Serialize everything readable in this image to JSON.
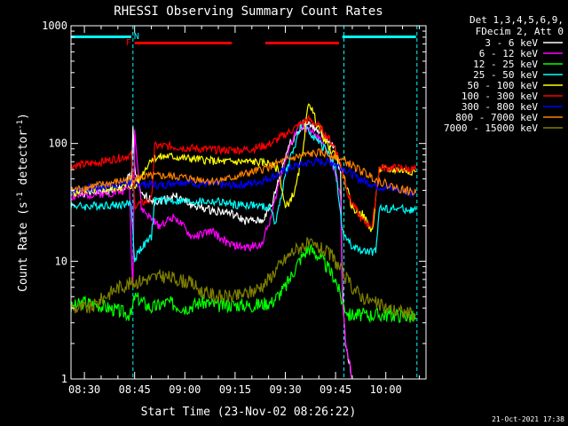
{
  "chart_data": {
    "type": "line",
    "title": "RHESSI Observing Summary Count Rates",
    "xlabel": "Start Time (23-Nov-02 08:26:22)",
    "ylabel_main": "Count Rate (s",
    "ylabel_sup1": "-1",
    "ylabel_mid": " detector",
    "ylabel_sup2": "-1",
    "ylabel_end": ")",
    "y_scale": "log",
    "ylim": [
      1,
      1000
    ],
    "xlim_minutes": [
      506,
      612
    ],
    "x_ticks": [
      {
        "label": "08:30",
        "t": 510
      },
      {
        "label": "08:45",
        "t": 525
      },
      {
        "label": "09:00",
        "t": 540
      },
      {
        "label": "09:15",
        "t": 555
      },
      {
        "label": "09:30",
        "t": 570
      },
      {
        "label": "09:45",
        "t": 585
      },
      {
        "label": "10:00",
        "t": 600
      }
    ],
    "y_ticks": [
      {
        "label": "1",
        "v": 1
      },
      {
        "label": "10",
        "v": 10
      },
      {
        "label": "100",
        "v": 100
      },
      {
        "label": "1000",
        "v": 1000
      }
    ],
    "legend_header": [
      "Det 1,3,4,5,6,9,",
      "FDecim 2, Att 0"
    ],
    "legend_position": "right",
    "flag_labels": {
      "flare": "F",
      "night": "N"
    },
    "night_flag_segments": [
      [
        506,
        524
      ],
      [
        587,
        609
      ]
    ],
    "flare_flag_segments": [
      [
        525,
        554
      ],
      [
        564,
        586
      ]
    ],
    "night_boundaries": [
      524.5,
      587.5,
      609.3
    ],
    "series": [
      {
        "name": "3 - 6 keV",
        "color": "#ffffff",
        "points": [
          [
            506,
            38
          ],
          [
            512,
            38
          ],
          [
            518,
            40
          ],
          [
            522,
            42
          ],
          [
            523.5,
            55
          ],
          [
            524,
            40
          ],
          [
            524.5,
            140
          ],
          [
            525,
            60
          ],
          [
            527,
            36
          ],
          [
            532,
            32
          ],
          [
            537,
            36
          ],
          [
            542,
            30
          ],
          [
            548,
            27
          ],
          [
            553,
            26
          ],
          [
            558,
            22
          ],
          [
            563,
            22
          ],
          [
            566,
            30
          ],
          [
            568,
            50
          ],
          [
            571,
            95
          ],
          [
            574,
            130
          ],
          [
            577,
            145
          ],
          [
            580,
            130
          ],
          [
            583,
            100
          ],
          [
            585,
            90
          ],
          [
            586.5,
            55
          ],
          [
            587,
            6
          ],
          [
            588,
            2
          ],
          [
            590,
            1
          ]
        ]
      },
      {
        "name": "6 - 12 keV",
        "color": "#ff00ff",
        "points": [
          [
            506,
            35
          ],
          [
            512,
            37
          ],
          [
            518,
            38
          ],
          [
            522,
            40
          ],
          [
            523.5,
            45
          ],
          [
            524,
            12
          ],
          [
            524.5,
            6
          ],
          [
            525,
            140
          ],
          [
            526,
            60
          ],
          [
            527,
            28
          ],
          [
            532,
            20
          ],
          [
            537,
            24
          ],
          [
            542,
            16
          ],
          [
            548,
            18
          ],
          [
            553,
            14
          ],
          [
            558,
            13
          ],
          [
            563,
            14
          ],
          [
            566,
            25
          ],
          [
            568,
            45
          ],
          [
            571,
            90
          ],
          [
            574,
            140
          ],
          [
            577,
            130
          ],
          [
            580,
            110
          ],
          [
            583,
            80
          ],
          [
            585,
            55
          ],
          [
            586.5,
            35
          ],
          [
            587,
            5
          ],
          [
            588,
            2
          ],
          [
            590,
            1
          ]
        ]
      },
      {
        "name": "12 - 25 keV",
        "color": "#00ff00",
        "points": [
          [
            506,
            4
          ],
          [
            510,
            4.5
          ],
          [
            515,
            4.2
          ],
          [
            520,
            3.8
          ],
          [
            524,
            3.5
          ],
          [
            525,
            5
          ],
          [
            530,
            4
          ],
          [
            535,
            4.5
          ],
          [
            540,
            4
          ],
          [
            545,
            4.5
          ],
          [
            550,
            4.2
          ],
          [
            555,
            4.3
          ],
          [
            560,
            4.2
          ],
          [
            566,
            4.5
          ],
          [
            570,
            6
          ],
          [
            574,
            10
          ],
          [
            577,
            13
          ],
          [
            580,
            11
          ],
          [
            583,
            8.5
          ],
          [
            585,
            7
          ],
          [
            587,
            4.5
          ],
          [
            589,
            3.5
          ],
          [
            592,
            3.5
          ],
          [
            598,
            3.5
          ],
          [
            603,
            3.5
          ],
          [
            607,
            3.4
          ],
          [
            609,
            3.3
          ]
        ]
      },
      {
        "name": "25 - 50 keV",
        "color": "#00ffff",
        "points": [
          [
            506,
            30
          ],
          [
            510,
            29
          ],
          [
            515,
            30
          ],
          [
            520,
            30
          ],
          [
            524,
            31
          ],
          [
            525,
            10
          ],
          [
            526,
            12
          ],
          [
            530,
            16
          ],
          [
            531,
            33
          ],
          [
            535,
            33
          ],
          [
            540,
            32
          ],
          [
            545,
            32
          ],
          [
            550,
            32
          ],
          [
            555,
            30
          ],
          [
            560,
            30
          ],
          [
            566,
            28
          ],
          [
            567,
            20
          ],
          [
            570,
            55
          ],
          [
            573,
            100
          ],
          [
            575,
            150
          ],
          [
            577,
            130
          ],
          [
            580,
            100
          ],
          [
            583,
            85
          ],
          [
            585,
            60
          ],
          [
            587,
            18
          ],
          [
            590,
            13
          ],
          [
            594,
            12
          ],
          [
            597,
            12
          ],
          [
            598,
            28
          ],
          [
            603,
            28
          ],
          [
            609,
            27
          ]
        ]
      },
      {
        "name": "50 - 100 keV",
        "color": "#ffff00",
        "points": [
          [
            506,
            38
          ],
          [
            510,
            40
          ],
          [
            515,
            41
          ],
          [
            520,
            42
          ],
          [
            524,
            44
          ],
          [
            525,
            42
          ],
          [
            530,
            75
          ],
          [
            535,
            78
          ],
          [
            540,
            75
          ],
          [
            545,
            73
          ],
          [
            550,
            70
          ],
          [
            555,
            70
          ],
          [
            560,
            70
          ],
          [
            565,
            68
          ],
          [
            568,
            60
          ],
          [
            570,
            28
          ],
          [
            573,
            40
          ],
          [
            575,
            80
          ],
          [
            577,
            230
          ],
          [
            579,
            160
          ],
          [
            583,
            90
          ],
          [
            585,
            80
          ],
          [
            587,
            58
          ],
          [
            590,
            28
          ],
          [
            593,
            25
          ],
          [
            596,
            18
          ],
          [
            598,
            60
          ],
          [
            603,
            60
          ],
          [
            609,
            58
          ]
        ]
      },
      {
        "name": "100 - 300 keV",
        "color": "#ff0000",
        "points": [
          [
            506,
            65
          ],
          [
            510,
            66
          ],
          [
            515,
            70
          ],
          [
            520,
            75
          ],
          [
            524,
            80
          ],
          [
            525,
            30
          ],
          [
            530,
            33
          ],
          [
            531,
            95
          ],
          [
            535,
            95
          ],
          [
            540,
            92
          ],
          [
            545,
            90
          ],
          [
            550,
            88
          ],
          [
            555,
            88
          ],
          [
            560,
            90
          ],
          [
            565,
            98
          ],
          [
            568,
            110
          ],
          [
            572,
            130
          ],
          [
            575,
            150
          ],
          [
            577,
            160
          ],
          [
            580,
            140
          ],
          [
            583,
            110
          ],
          [
            585,
            90
          ],
          [
            587,
            60
          ],
          [
            589,
            35
          ],
          [
            593,
            22
          ],
          [
            596,
            20
          ],
          [
            598,
            62
          ],
          [
            603,
            62
          ],
          [
            609,
            60
          ]
        ]
      },
      {
        "name": "300 - 800 keV",
        "color": "#0000ff",
        "points": [
          [
            506,
            40
          ],
          [
            512,
            42
          ],
          [
            518,
            44
          ],
          [
            524,
            47
          ],
          [
            528,
            45
          ],
          [
            533,
            44
          ],
          [
            538,
            48
          ],
          [
            543,
            46
          ],
          [
            548,
            45
          ],
          [
            553,
            44
          ],
          [
            558,
            45
          ],
          [
            563,
            48
          ],
          [
            568,
            55
          ],
          [
            572,
            63
          ],
          [
            576,
            68
          ],
          [
            580,
            70
          ],
          [
            584,
            69
          ],
          [
            588,
            60
          ],
          [
            592,
            50
          ],
          [
            598,
            43
          ],
          [
            603,
            41
          ],
          [
            609,
            38
          ]
        ]
      },
      {
        "name": "800 - 7000 keV",
        "color": "#ff8000",
        "points": [
          [
            506,
            40
          ],
          [
            512,
            43
          ],
          [
            518,
            46
          ],
          [
            524,
            50
          ],
          [
            528,
            52
          ],
          [
            533,
            53
          ],
          [
            538,
            52
          ],
          [
            543,
            50
          ],
          [
            548,
            48
          ],
          [
            553,
            50
          ],
          [
            558,
            55
          ],
          [
            563,
            60
          ],
          [
            568,
            68
          ],
          [
            572,
            75
          ],
          [
            576,
            80
          ],
          [
            580,
            83
          ],
          [
            584,
            80
          ],
          [
            588,
            70
          ],
          [
            592,
            60
          ],
          [
            598,
            48
          ],
          [
            603,
            42
          ],
          [
            609,
            38
          ]
        ]
      },
      {
        "name": "7000 - 15000 keV",
        "color": "#808000",
        "points": [
          [
            506,
            4
          ],
          [
            512,
            4
          ],
          [
            516,
            5
          ],
          [
            520,
            6
          ],
          [
            524,
            6.5
          ],
          [
            528,
            7
          ],
          [
            533,
            7.5
          ],
          [
            538,
            7
          ],
          [
            542,
            6.5
          ],
          [
            545,
            5.5
          ],
          [
            550,
            5
          ],
          [
            555,
            5
          ],
          [
            560,
            5.5
          ],
          [
            564,
            6.5
          ],
          [
            568,
            9
          ],
          [
            572,
            12
          ],
          [
            576,
            14
          ],
          [
            580,
            13
          ],
          [
            584,
            11
          ],
          [
            587,
            8
          ],
          [
            590,
            6
          ],
          [
            593,
            5
          ],
          [
            596,
            4.5
          ],
          [
            600,
            4
          ],
          [
            605,
            3.7
          ],
          [
            609,
            3.5
          ]
        ]
      }
    ]
  },
  "footer_timestamp": "21-Oct-2021 17:38"
}
